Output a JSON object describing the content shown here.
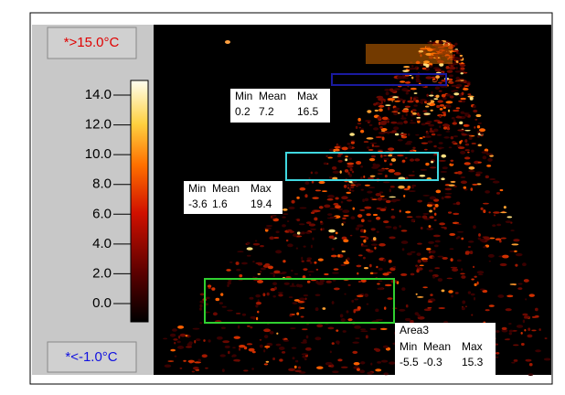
{
  "scale": {
    "max_label": "*>15.0°C",
    "min_label": "*<-1.0°C",
    "ticks": [
      {
        "value": 14,
        "label": "14.0"
      },
      {
        "value": 12,
        "label": "12.0"
      },
      {
        "value": 10,
        "label": "10.0"
      },
      {
        "value": 8,
        "label": "8.0"
      },
      {
        "value": 6,
        "label": "6.0"
      },
      {
        "value": 4,
        "label": "4.0"
      },
      {
        "value": 2,
        "label": "2.0"
      },
      {
        "value": 0,
        "label": "0.0"
      }
    ]
  },
  "areas": [
    {
      "color": "#1a1aa0",
      "header": [
        "Min",
        "Mean",
        "Max"
      ],
      "stats": [
        "0.2",
        "7.2",
        "16.5"
      ]
    },
    {
      "color": "#40d8e0",
      "header": [
        "Min",
        "Mean",
        "Max"
      ],
      "stats": [
        "-3.6",
        "1.6",
        "19.4"
      ]
    },
    {
      "name": "Area3",
      "color": "#30d030",
      "header": [
        "Min",
        "Mean",
        "Max"
      ],
      "stats": [
        "-5.5",
        "-0.3",
        "15.3"
      ]
    }
  ]
}
